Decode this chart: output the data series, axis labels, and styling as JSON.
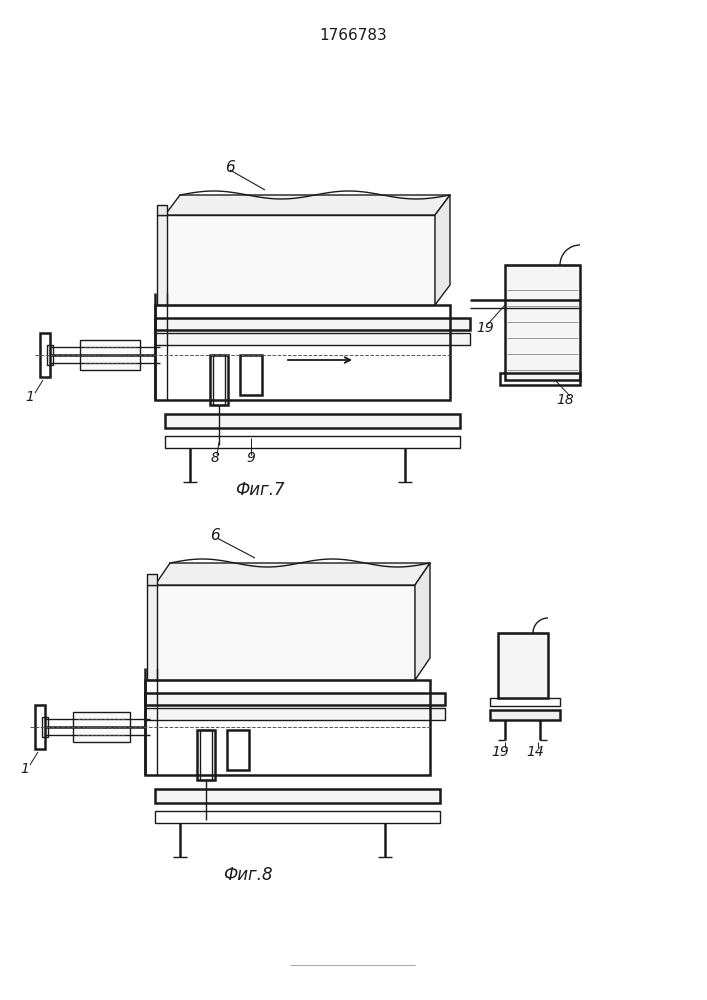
{
  "title": "1766783",
  "fig1_label": "Фиг.7",
  "fig2_label": "Фиг.8",
  "bg": "#ffffff",
  "lc": "#1a1a1a",
  "lw": 1.0,
  "lw2": 1.8
}
